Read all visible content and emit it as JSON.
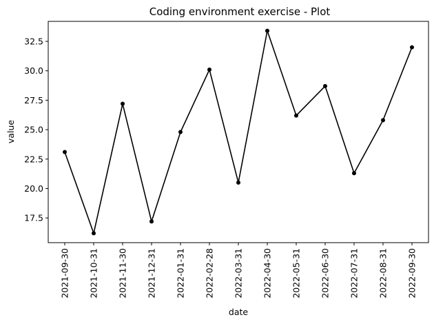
{
  "chart_data": {
    "type": "line",
    "title": "Coding environment exercise - Plot",
    "xlabel": "date",
    "ylabel": "value",
    "x": [
      "2021-09-30",
      "2021-10-31",
      "2021-11-30",
      "2021-12-31",
      "2022-01-31",
      "2022-02-28",
      "2022-03-31",
      "2022-04-30",
      "2022-05-31",
      "2022-06-30",
      "2022-07-31",
      "2022-08-31",
      "2022-09-30"
    ],
    "series": [
      {
        "values": [
          23.1,
          16.2,
          27.2,
          17.2,
          24.8,
          30.1,
          20.5,
          33.4,
          26.2,
          28.7,
          21.3,
          25.8,
          32.0
        ]
      }
    ],
    "yticks": [
      17.5,
      20.0,
      22.5,
      25.0,
      27.5,
      30.0,
      32.5
    ],
    "ytick_labels": [
      "17.5",
      "20.0",
      "22.5",
      "25.0",
      "27.5",
      "30.0",
      "32.5"
    ],
    "ylim": [
      15.4,
      34.2
    ],
    "grid": false,
    "line_color": "#000000",
    "marker": "circle"
  }
}
